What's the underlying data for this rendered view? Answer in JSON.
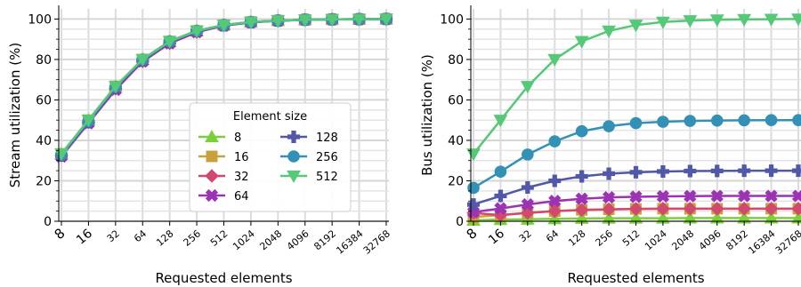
{
  "chart_data": [
    {
      "type": "line",
      "xlabel": "Requested elements",
      "ylabel": "Stream utilization (%)",
      "x_scale": "log2",
      "x": [
        8,
        16,
        32,
        64,
        128,
        256,
        512,
        1024,
        2048,
        4096,
        8192,
        16384,
        32768
      ],
      "xticklabels": [
        "8",
        "16",
        "32",
        "64",
        "128",
        "256",
        "512",
        "1024",
        "2048",
        "4096",
        "8192",
        "16384",
        "32768"
      ],
      "ylim": [
        0,
        105
      ],
      "yticks": [
        0,
        20,
        40,
        60,
        80,
        100
      ],
      "yticklabels": [
        "0",
        "20",
        "40",
        "60",
        "80",
        "100"
      ],
      "grid": true,
      "legend": {
        "title": "Element size",
        "position": "lower-right",
        "columns": 2
      },
      "series": [
        {
          "name": "8",
          "color": "#7ccf3b",
          "marker": "triangle-up",
          "values": [
            33.3,
            50,
            66.7,
            80,
            88.9,
            94.1,
            97,
            98.5,
            99.2,
            99.6,
            99.8,
            99.9,
            100
          ]
        },
        {
          "name": "16",
          "color": "#c9a13c",
          "marker": "square",
          "values": [
            33.3,
            50,
            66.7,
            80,
            88.9,
            94.1,
            97,
            98.5,
            99.2,
            99.6,
            99.8,
            99.9,
            100
          ]
        },
        {
          "name": "32",
          "color": "#d1496e",
          "marker": "diamond",
          "values": [
            32.5,
            49,
            65.5,
            79,
            88,
            93.5,
            96.8,
            98.4,
            99.2,
            99.6,
            99.8,
            99.9,
            100
          ]
        },
        {
          "name": "64",
          "color": "#9b33b3",
          "marker": "x-thick",
          "values": [
            32,
            48.5,
            65,
            79,
            88,
            93.5,
            96.7,
            98.3,
            99.1,
            99.6,
            99.8,
            99.9,
            100
          ]
        },
        {
          "name": "128",
          "color": "#5258a8",
          "marker": "plus-thick",
          "values": [
            32.5,
            49,
            66,
            79.5,
            88.5,
            94,
            96.9,
            98.4,
            99.2,
            99.6,
            99.8,
            99.9,
            100
          ]
        },
        {
          "name": "256",
          "color": "#3391b5",
          "marker": "circle",
          "values": [
            33,
            49.5,
            66.5,
            80,
            89,
            94.2,
            97,
            98.5,
            99.2,
            99.6,
            99.8,
            99.9,
            100
          ]
        },
        {
          "name": "512",
          "color": "#55c978",
          "marker": "triangle-down",
          "values": [
            33.3,
            50,
            66.7,
            80,
            88.9,
            94.1,
            97,
            98.5,
            99.2,
            99.6,
            99.8,
            99.9,
            100
          ]
        }
      ]
    },
    {
      "type": "line",
      "xlabel": "Requested elements",
      "ylabel": "Bus utilization (%)",
      "x_scale": "log2",
      "x": [
        8,
        16,
        32,
        64,
        128,
        256,
        512,
        1024,
        2048,
        4096,
        8192,
        16384,
        32768
      ],
      "xticklabels": [
        "8",
        "16",
        "32",
        "64",
        "128",
        "256",
        "512",
        "1024",
        "2048",
        "4096",
        "8192",
        "16384",
        "32768"
      ],
      "ylim": [
        0,
        105
      ],
      "yticks": [
        0,
        20,
        40,
        60,
        80,
        100
      ],
      "yticklabels": [
        "0",
        "20",
        "40",
        "60",
        "80",
        "100"
      ],
      "grid": true,
      "series": [
        {
          "name": "8",
          "color": "#7ccf3b",
          "marker": "triangle-up",
          "values": [
            0.5,
            0.8,
            1.0,
            1.2,
            1.4,
            1.5,
            1.5,
            1.5,
            1.6,
            1.6,
            1.6,
            1.6,
            1.6
          ]
        },
        {
          "name": "16",
          "color": "#c9a13c",
          "marker": "square",
          "values": [
            2.1,
            3.1,
            4.2,
            5.0,
            5.6,
            5.9,
            6.1,
            6.2,
            6.2,
            6.2,
            6.2,
            6.2,
            6.2
          ]
        },
        {
          "name": "32",
          "color": "#d1496e",
          "marker": "diamond",
          "values": [
            4.1,
            3.0,
            4.1,
            5.0,
            5.6,
            5.9,
            6.1,
            6.2,
            6.2,
            6.2,
            6.2,
            6.2,
            6.2
          ]
        },
        {
          "name": "64",
          "color": "#9b33b3",
          "marker": "x-thick",
          "values": [
            4.5,
            6.3,
            8.3,
            10,
            11.1,
            11.8,
            12.1,
            12.3,
            12.4,
            12.5,
            12.5,
            12.5,
            12.5
          ]
        },
        {
          "name": "128",
          "color": "#5258a8",
          "marker": "plus-thick",
          "values": [
            8.3,
            12.5,
            16.7,
            20,
            22.2,
            23.5,
            24.2,
            24.6,
            24.8,
            24.9,
            25,
            25,
            25
          ]
        },
        {
          "name": "256",
          "color": "#3391b5",
          "marker": "circle",
          "values": [
            16.5,
            24.5,
            33,
            39.5,
            44.5,
            47,
            48.5,
            49.2,
            49.6,
            49.8,
            49.9,
            50,
            50
          ]
        },
        {
          "name": "512",
          "color": "#55c978",
          "marker": "triangle-down",
          "values": [
            33.3,
            50,
            66.7,
            80,
            88.9,
            94.1,
            97,
            98.5,
            99.2,
            99.6,
            99.8,
            99.9,
            100
          ]
        }
      ]
    }
  ]
}
